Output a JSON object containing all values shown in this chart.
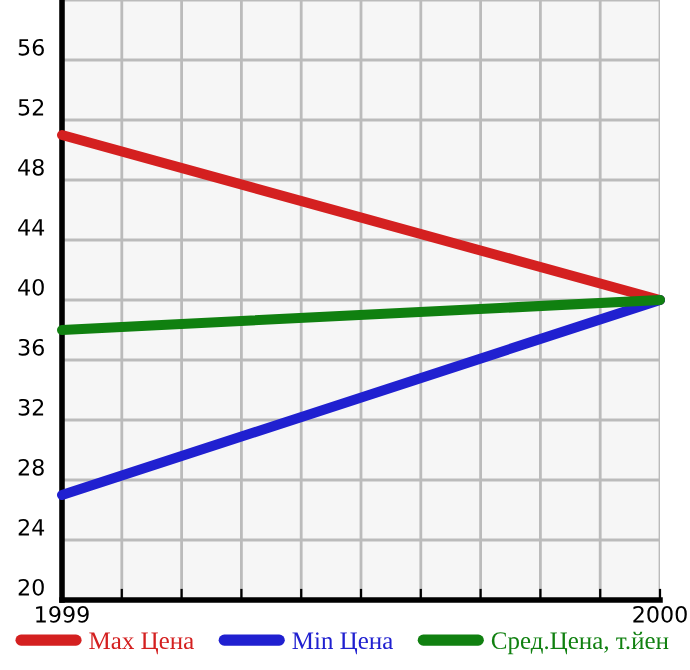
{
  "chart_data": {
    "type": "line",
    "x": [
      1999,
      2000
    ],
    "series": [
      {
        "name": "Max Цена",
        "color": "#d42020",
        "values": [
          51,
          40
        ]
      },
      {
        "name": "Min Цена",
        "color": "#2020d0",
        "values": [
          27,
          40
        ]
      },
      {
        "name": "Сред.Цена, т.йен",
        "color": "#108010",
        "values": [
          38,
          40
        ]
      }
    ],
    "xlim": [
      1999,
      2000
    ],
    "ylim": [
      20,
      60
    ],
    "xticks": [
      1999,
      {
        "value": 1999.1,
        "label": null
      },
      {
        "value": 1999.2,
        "label": null
      },
      {
        "value": 1999.3,
        "label": null
      },
      {
        "value": 1999.4,
        "label": null
      },
      {
        "value": 1999.5,
        "label": null
      },
      {
        "value": 1999.6,
        "label": null
      },
      {
        "value": 1999.7,
        "label": null
      },
      {
        "value": 1999.8,
        "label": null
      },
      {
        "value": 1999.9,
        "label": null
      },
      2000
    ],
    "yticks": [
      20,
      24,
      28,
      32,
      36,
      40,
      44,
      48,
      52,
      56,
      {
        "value": 60,
        "label": null
      }
    ],
    "grid": true,
    "legend": "bottom",
    "marker": "none",
    "line_style": "solid"
  }
}
